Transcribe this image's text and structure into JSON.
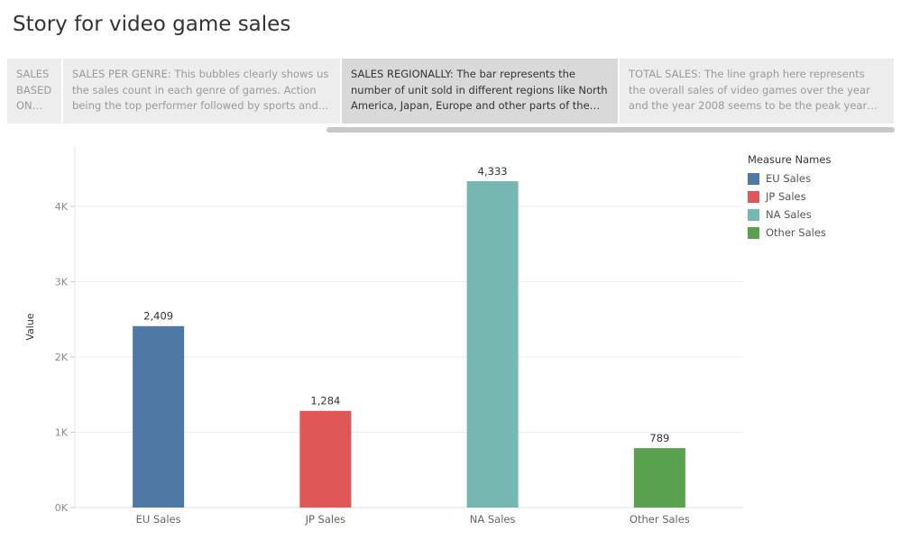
{
  "story": {
    "title": "Story for video game sales",
    "points": [
      {
        "caption": "SALES BASED ON PLA.."
      },
      {
        "caption": "SALES PER GENRE: This bubbles clearly shows us the sales count in each  genre of games. Action being the top performer followed by sports and s.."
      },
      {
        "caption": "SALES REGIONALLY: The bar represents the number of unit sold in different regions like North America, Japan, Europe and other parts of the wor.."
      },
      {
        "caption": "TOTAL SALES: The line graph here represents the overall sales of video games over the year and the year 2008 seems  to be the peak year where the s.."
      }
    ],
    "active_index": 2
  },
  "legend": {
    "title": "Measure Names",
    "items": [
      {
        "label": "EU Sales",
        "color": "#4e79a7"
      },
      {
        "label": "JP Sales",
        "color": "#e15759"
      },
      {
        "label": "NA Sales",
        "color": "#76b7b2"
      },
      {
        "label": "Other Sales",
        "color": "#59a14f"
      }
    ]
  },
  "chart_data": {
    "type": "bar",
    "categories": [
      "EU Sales",
      "JP Sales",
      "NA Sales",
      "Other Sales"
    ],
    "values": [
      2409,
      1284,
      4333,
      789
    ],
    "data_labels": [
      "2,409",
      "1,284",
      "4,333",
      "789"
    ],
    "colors": [
      "#4e79a7",
      "#e15759",
      "#76b7b2",
      "#59a14f"
    ],
    "ylabel": "Value",
    "xlabel": "",
    "ylim": [
      0,
      4800
    ],
    "yticks": [
      0,
      1000,
      2000,
      3000,
      4000
    ],
    "ytick_labels": [
      "0K",
      "1K",
      "2K",
      "3K",
      "4K"
    ],
    "grid": true,
    "legend_position": "top-right"
  }
}
